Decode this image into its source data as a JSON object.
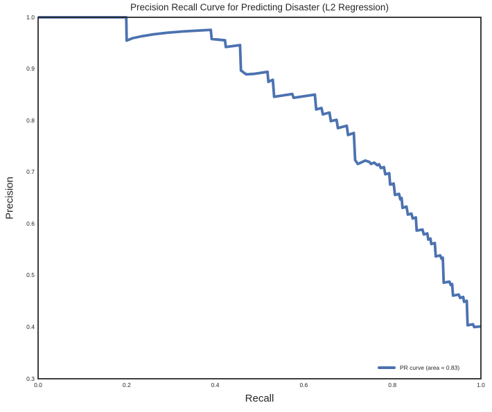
{
  "colors": {
    "line": "#4C72B0",
    "axis": "#262626",
    "background": "#ffffff",
    "text": "#262626"
  },
  "chart_data": {
    "type": "line",
    "title": "Precision Recall Curve for Predicting Disaster (L2 Regression)",
    "xlabel": "Recall",
    "ylabel": "Precision",
    "xlim": [
      0.0,
      1.0
    ],
    "ylim": [
      0.3,
      1.0
    ],
    "grid": false,
    "xtick_labels": [
      "0.0",
      "0.2",
      "0.4",
      "0.6",
      "0.8",
      "1.0"
    ],
    "xtick_values": [
      0.0,
      0.2,
      0.4,
      0.6,
      0.8,
      1.0
    ],
    "ytick_labels": [
      "0.3",
      "0.4",
      "0.5",
      "0.6",
      "0.7",
      "0.8",
      "0.9",
      "1.0"
    ],
    "ytick_values": [
      0.3,
      0.4,
      0.5,
      0.6,
      0.7,
      0.8,
      0.9,
      1.0
    ],
    "legend": {
      "position": "lower right",
      "entries": [
        {
          "label": "PR curve (area = 0.83)",
          "color": "#4C72B0"
        }
      ]
    },
    "area_under_curve": 0.83,
    "series": [
      {
        "name": "PR curve",
        "color": "#4C72B0",
        "line_width": 3.8,
        "points": [
          [
            0.0,
            1.0
          ],
          [
            0.199,
            1.0
          ],
          [
            0.2,
            0.955
          ],
          [
            0.213,
            0.9595
          ],
          [
            0.235,
            0.9635
          ],
          [
            0.26,
            0.967
          ],
          [
            0.29,
            0.97
          ],
          [
            0.325,
            0.9725
          ],
          [
            0.355,
            0.974
          ],
          [
            0.39,
            0.9757
          ],
          [
            0.392,
            0.958
          ],
          [
            0.422,
            0.9555
          ],
          [
            0.424,
            0.9425
          ],
          [
            0.456,
            0.9462
          ],
          [
            0.458,
            0.897
          ],
          [
            0.47,
            0.8895
          ],
          [
            0.487,
            0.8905
          ],
          [
            0.518,
            0.8945
          ],
          [
            0.52,
            0.875
          ],
          [
            0.53,
            0.879
          ],
          [
            0.533,
            0.846
          ],
          [
            0.574,
            0.8515
          ],
          [
            0.577,
            0.844
          ],
          [
            0.625,
            0.8503
          ],
          [
            0.628,
            0.8215
          ],
          [
            0.64,
            0.8245
          ],
          [
            0.643,
            0.812
          ],
          [
            0.658,
            0.8155
          ],
          [
            0.661,
            0.799
          ],
          [
            0.674,
            0.8015
          ],
          [
            0.677,
            0.7855
          ],
          [
            0.697,
            0.79
          ],
          [
            0.7,
            0.772
          ],
          [
            0.713,
            0.776
          ],
          [
            0.716,
            0.7235
          ],
          [
            0.722,
            0.716
          ],
          [
            0.739,
            0.7225
          ],
          [
            0.748,
            0.72
          ],
          [
            0.752,
            0.716
          ],
          [
            0.759,
            0.7185
          ],
          [
            0.766,
            0.7135
          ],
          [
            0.77,
            0.7155
          ],
          [
            0.774,
            0.708
          ],
          [
            0.781,
            0.71
          ],
          [
            0.784,
            0.696
          ],
          [
            0.793,
            0.698
          ],
          [
            0.795,
            0.676
          ],
          [
            0.803,
            0.678
          ],
          [
            0.806,
            0.656
          ],
          [
            0.815,
            0.658
          ],
          [
            0.818,
            0.6475
          ],
          [
            0.821,
            0.65
          ],
          [
            0.823,
            0.631
          ],
          [
            0.832,
            0.6335
          ],
          [
            0.835,
            0.618
          ],
          [
            0.843,
            0.62
          ],
          [
            0.846,
            0.6105
          ],
          [
            0.853,
            0.6125
          ],
          [
            0.855,
            0.587
          ],
          [
            0.868,
            0.589
          ],
          [
            0.871,
            0.5795
          ],
          [
            0.879,
            0.5815
          ],
          [
            0.881,
            0.5695
          ],
          [
            0.886,
            0.5715
          ],
          [
            0.888,
            0.561
          ],
          [
            0.896,
            0.563
          ],
          [
            0.898,
            0.537
          ],
          [
            0.908,
            0.539
          ],
          [
            0.911,
            0.5325
          ],
          [
            0.914,
            0.5345
          ],
          [
            0.916,
            0.486
          ],
          [
            0.929,
            0.488
          ],
          [
            0.932,
            0.4815
          ],
          [
            0.935,
            0.4835
          ],
          [
            0.937,
            0.461
          ],
          [
            0.95,
            0.463
          ],
          [
            0.953,
            0.4565
          ],
          [
            0.96,
            0.4585
          ],
          [
            0.962,
            0.449
          ],
          [
            0.968,
            0.451
          ],
          [
            0.97,
            0.4035
          ],
          [
            0.982,
            0.4055
          ],
          [
            0.985,
            0.4
          ],
          [
            1.0,
            0.4015
          ]
        ]
      }
    ]
  }
}
